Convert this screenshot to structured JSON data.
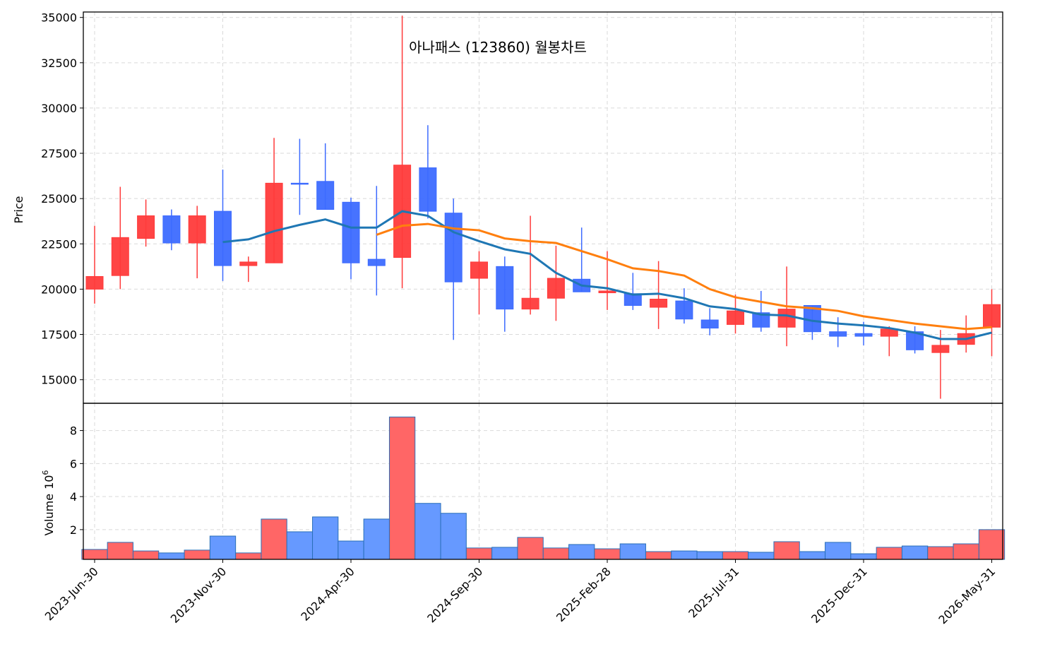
{
  "chart_data": [
    {
      "type": "candlestick",
      "title": "아나패스 (123860) 월봉차트",
      "y_label": "Price",
      "categories": [
        "2023-Jun-30",
        null,
        null,
        null,
        null,
        "2023-Nov-30",
        null,
        null,
        null,
        null,
        "2024-Apr-30",
        null,
        null,
        null,
        null,
        "2024-Sep-30",
        null,
        null,
        null,
        null,
        "2025-Feb-28",
        null,
        null,
        null,
        null,
        "2025-Jul-31",
        null,
        null,
        null,
        null,
        "2025-Dec-31",
        null,
        null,
        null,
        null,
        "2026-May-31"
      ],
      "open": [
        20000,
        20750,
        22800,
        24050,
        22550,
        24300,
        21300,
        21450,
        25850,
        25950,
        24800,
        21650,
        21750,
        26700,
        24200,
        20600,
        21250,
        18900,
        19500,
        20550,
        19800,
        19750,
        19000,
        19350,
        18300,
        18050,
        18700,
        17900,
        19100,
        17650,
        17550,
        17400,
        17650,
        16500,
        16950,
        17900
      ],
      "high": [
        23500,
        25650,
        24950,
        24400,
        24600,
        26600,
        21800,
        28350,
        28300,
        28050,
        25050,
        25700,
        35100,
        29050,
        25000,
        22100,
        21800,
        24050,
        22400,
        23400,
        22100,
        20900,
        21550,
        20050,
        18950,
        19700,
        19900,
        21250,
        19100,
        18450,
        18200,
        17950,
        17950,
        17750,
        18550,
        20000
      ],
      "low": [
        19200,
        20000,
        22350,
        22150,
        20600,
        20450,
        20400,
        21450,
        24100,
        24400,
        20550,
        19650,
        20050,
        23900,
        17200,
        18600,
        17650,
        18600,
        18250,
        19850,
        18850,
        18850,
        17800,
        18100,
        17450,
        17550,
        17650,
        16850,
        17200,
        16800,
        16900,
        16300,
        16450,
        13950,
        16500,
        16300
      ],
      "close": [
        20700,
        22850,
        24050,
        22550,
        24050,
        21300,
        21500,
        25850,
        25800,
        24400,
        21450,
        21300,
        26850,
        24300,
        20400,
        21500,
        18900,
        19500,
        20600,
        19850,
        19900,
        19100,
        19450,
        18350,
        17850,
        18800,
        17900,
        18900,
        17650,
        17400,
        17400,
        17800,
        16650,
        16900,
        17550,
        19150
      ],
      "up_color": "#ff3b3b",
      "down_color": "#3d6bff",
      "series": [
        {
          "color": "#1f77b4",
          "values": [
            null,
            null,
            null,
            null,
            null,
            22600,
            22750,
            23200,
            23550,
            23850,
            23400,
            23400,
            24300,
            24050,
            23150,
            22650,
            22200,
            21950,
            20900,
            20200,
            20050,
            19700,
            19750,
            19500,
            19050,
            18900,
            18600,
            18550,
            18250,
            18100,
            18000,
            17850,
            17600,
            17250,
            17250,
            17600
          ]
        },
        {
          "color": "#ff7f0e",
          "values": [
            null,
            null,
            null,
            null,
            null,
            null,
            null,
            null,
            null,
            null,
            null,
            23000,
            23500,
            23600,
            23350,
            23250,
            22800,
            22650,
            22550,
            22100,
            21650,
            21150,
            21000,
            20750,
            20000,
            19550,
            19300,
            19050,
            18950,
            18800,
            18500,
            18300,
            18100,
            17950,
            17800,
            17900
          ]
        }
      ],
      "ylim": [
        13700,
        35300
      ],
      "yticks": [
        15000,
        17500,
        20000,
        22500,
        25000,
        27500,
        30000,
        32500,
        35000
      ],
      "grid": true
    },
    {
      "type": "bar",
      "y_label": "Volume",
      "scale_base": "10",
      "scale_exponent": "6",
      "values": [
        0.8,
        1.23,
        0.71,
        0.59,
        0.76,
        1.61,
        0.59,
        2.64,
        1.87,
        2.77,
        1.31,
        2.64,
        8.82,
        3.59,
        2.99,
        0.89,
        0.93,
        1.53,
        0.89,
        1.1,
        0.84,
        1.14,
        0.67,
        0.71,
        0.67,
        0.67,
        0.63,
        1.27,
        0.67,
        1.23,
        0.54,
        0.93,
        1.01,
        0.97,
        1.14,
        2.0
      ],
      "up_color": "#ff6666",
      "down_color": "#6699ff",
      "edge_color": "#2a6fb8",
      "ylim": [
        0.2,
        9.65
      ],
      "yticks": [
        2,
        4,
        6,
        8
      ],
      "grid": true
    }
  ]
}
